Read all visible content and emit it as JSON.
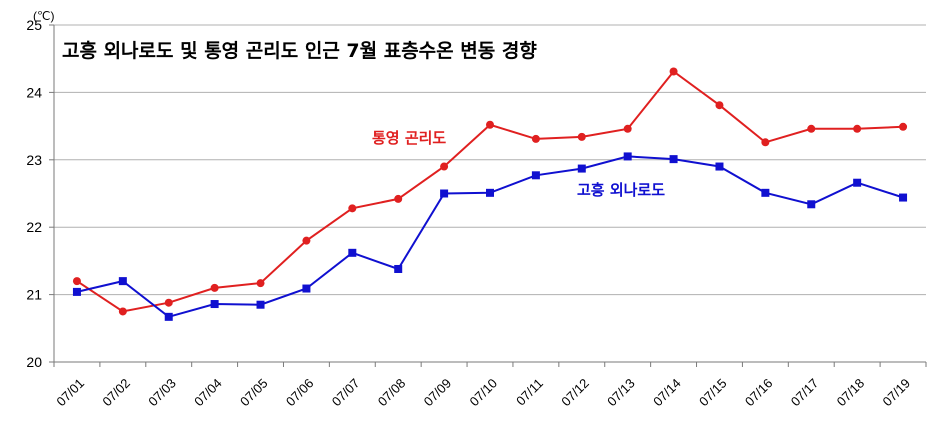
{
  "chart_data": {
    "type": "line",
    "title": "고흥 외나로도 및 통영 곤리도 인근 7월 표층수온 변동 경향",
    "unit": "(℃)",
    "ylim": [
      20,
      25
    ],
    "yticks": [
      "20",
      "21",
      "22",
      "23",
      "24",
      "25"
    ],
    "grid": true,
    "categories": [
      "07/01",
      "07/02",
      "07/03",
      "07/04",
      "07/05",
      "07/06",
      "07/07",
      "07/08",
      "07/09",
      "07/10",
      "07/11",
      "07/12",
      "07/13",
      "07/14",
      "07/15",
      "07/16",
      "07/17",
      "07/18",
      "07/19"
    ],
    "series": [
      {
        "name": "통영 곤리도",
        "color": "#e02020",
        "marker": "circle",
        "values": [
          21.2,
          20.75,
          20.88,
          21.1,
          21.17,
          21.8,
          22.28,
          22.42,
          22.9,
          23.52,
          23.31,
          23.34,
          23.46,
          24.31,
          23.81,
          23.26,
          23.46,
          23.46,
          23.49
        ]
      },
      {
        "name": "고흥 외나로도",
        "color": "#1010d0",
        "marker": "square",
        "values": [
          21.04,
          21.2,
          20.67,
          20.86,
          20.85,
          21.09,
          21.62,
          21.38,
          22.5,
          22.51,
          22.77,
          22.87,
          23.05,
          23.01,
          22.9,
          22.51,
          22.34,
          22.66,
          22.44
        ]
      }
    ]
  }
}
